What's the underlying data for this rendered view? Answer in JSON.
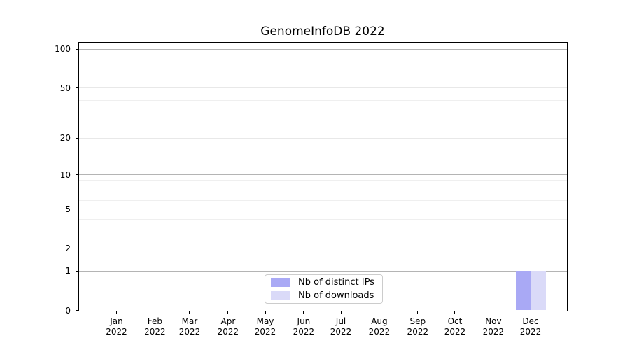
{
  "chart_data": {
    "type": "bar",
    "title": "GenomeInfoDB 2022",
    "x_ticks": [
      {
        "month": "Jan",
        "year": "2022"
      },
      {
        "month": "Feb",
        "year": "2022"
      },
      {
        "month": "Mar",
        "year": "2022"
      },
      {
        "month": "Apr",
        "year": "2022"
      },
      {
        "month": "May",
        "year": "2022"
      },
      {
        "month": "Jun",
        "year": "2022"
      },
      {
        "month": "Jul",
        "year": "2022"
      },
      {
        "month": "Aug",
        "year": "2022"
      },
      {
        "month": "Sep",
        "year": "2022"
      },
      {
        "month": "Oct",
        "year": "2022"
      },
      {
        "month": "Nov",
        "year": "2022"
      },
      {
        "month": "Dec",
        "year": "2022"
      }
    ],
    "series": [
      {
        "name": "Nb of distinct IPs",
        "color": "#a9a9f5",
        "values": [
          0,
          0,
          0,
          0,
          0,
          0,
          0,
          0,
          0,
          0,
          0,
          1
        ]
      },
      {
        "name": "Nb of downloads",
        "color": "#dadaf8",
        "values": [
          0,
          0,
          0,
          0,
          0,
          0,
          0,
          0,
          0,
          0,
          0,
          1
        ]
      }
    ],
    "yscale": "log1p",
    "ylim": [
      0,
      113
    ],
    "y_ticks": [
      0,
      1,
      2,
      5,
      10,
      20,
      50,
      100
    ],
    "y_major_ticks": [
      1,
      10,
      100
    ],
    "y_minor_gridlines": [
      3,
      4,
      6,
      7,
      8,
      9,
      30,
      40,
      60,
      70,
      80,
      90
    ],
    "grid": true,
    "legend_position": "lower-center-inside",
    "colors": {
      "major_grid": "#b4b4b4",
      "labeled_minor_grid": "#e8e8e8",
      "minor_grid": "#efefef",
      "spine": "#000000",
      "text": "#000000"
    }
  }
}
